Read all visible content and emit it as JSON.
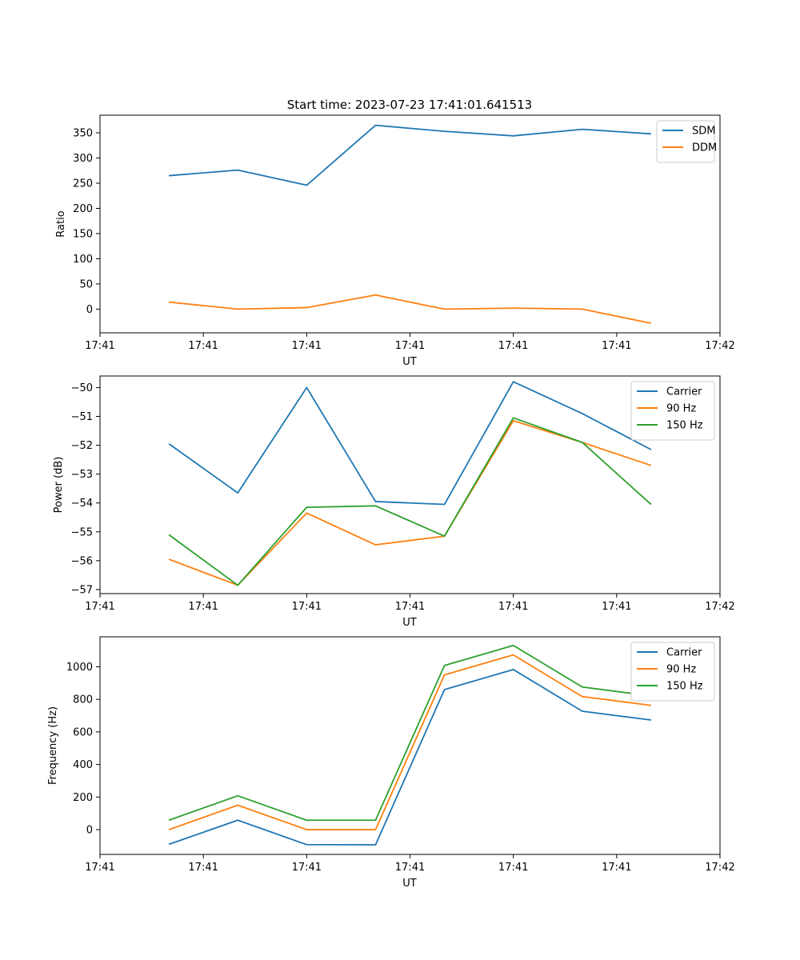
{
  "chart_data": [
    {
      "type": "line",
      "title": "Start time: 2023-07-23 17:41:01.641513",
      "xlabel": "UT",
      "ylabel": "Ratio",
      "xlim": [
        0,
        9
      ],
      "x": [
        1,
        2,
        3,
        4,
        5,
        6,
        7,
        8
      ],
      "x_ticks": [
        0,
        1.5,
        3,
        4.5,
        6,
        7.5,
        9
      ],
      "x_tick_labels": [
        "17:41",
        "17:41",
        "17:41",
        "17:41",
        "17:41",
        "17:41",
        "17:42"
      ],
      "ylim": [
        -47,
        385
      ],
      "y_ticks": [
        0,
        50,
        100,
        150,
        200,
        250,
        300,
        350
      ],
      "y_tick_labels": [
        "0",
        "50",
        "100",
        "150",
        "200",
        "250",
        "300",
        "350"
      ],
      "legend": "top-right",
      "series": [
        {
          "name": "SDM",
          "color": "#1f77b4",
          "values": [
            265,
            276,
            246,
            365,
            353,
            344,
            357,
            348
          ]
        },
        {
          "name": "DDM",
          "color": "#ff7f0e",
          "values": [
            14,
            0,
            3,
            28,
            0,
            2,
            0,
            -28
          ]
        }
      ]
    },
    {
      "type": "line",
      "title": "",
      "xlabel": "UT",
      "ylabel": "Power (dB)",
      "xlim": [
        0,
        9
      ],
      "x": [
        1,
        2,
        3,
        4,
        5,
        6,
        7,
        8
      ],
      "x_ticks": [
        0,
        1.5,
        3,
        4.5,
        6,
        7.5,
        9
      ],
      "x_tick_labels": [
        "17:41",
        "17:41",
        "17:41",
        "17:41",
        "17:41",
        "17:41",
        "17:42"
      ],
      "ylim": [
        -57.14,
        -49.6
      ],
      "y_ticks": [
        -57,
        -56,
        -55,
        -54,
        -53,
        -52,
        -51,
        -50
      ],
      "y_tick_labels": [
        "−57",
        "−56",
        "−55",
        "−54",
        "−53",
        "−52",
        "−51",
        "−50"
      ],
      "legend": "top-right",
      "series": [
        {
          "name": "Carrier",
          "color": "#1f77b4",
          "values": [
            -51.95,
            -53.65,
            -50.0,
            -53.95,
            -54.05,
            -49.8,
            -50.9,
            -52.15
          ]
        },
        {
          "name": "90 Hz",
          "color": "#ff7f0e",
          "values": [
            -55.95,
            -56.85,
            -54.35,
            -55.45,
            -55.15,
            -51.15,
            -51.9,
            -52.7
          ]
        },
        {
          "name": "150 Hz",
          "color": "#2ca02c",
          "values": [
            -55.1,
            -56.85,
            -54.15,
            -54.1,
            -55.15,
            -51.05,
            -51.9,
            -54.05
          ]
        }
      ]
    },
    {
      "type": "line",
      "title": "",
      "xlabel": "UT",
      "ylabel": "Frequency (Hz)",
      "xlim": [
        0,
        9
      ],
      "x": [
        1,
        2,
        3,
        4,
        5,
        6,
        7,
        8
      ],
      "x_ticks": [
        0,
        1.5,
        3,
        4.5,
        6,
        7.5,
        9
      ],
      "x_tick_labels": [
        "17:41",
        "17:41",
        "17:41",
        "17:41",
        "17:41",
        "17:41",
        "17:42"
      ],
      "ylim": [
        -152,
        1184
      ],
      "y_ticks": [
        0,
        200,
        400,
        600,
        800,
        1000
      ],
      "y_tick_labels": [
        "0",
        "200",
        "400",
        "600",
        "800",
        "1000"
      ],
      "legend": "top-right",
      "series": [
        {
          "name": "Carrier",
          "color": "#1f77b4",
          "values": [
            -90,
            58,
            -92,
            -93,
            860,
            983,
            727,
            673
          ]
        },
        {
          "name": "90 Hz",
          "color": "#ff7f0e",
          "values": [
            0,
            150,
            0,
            0,
            950,
            1073,
            817,
            763
          ]
        },
        {
          "name": "150 Hz",
          "color": "#2ca02c",
          "values": [
            58,
            208,
            58,
            58,
            1008,
            1131,
            876,
            821
          ]
        }
      ]
    }
  ]
}
